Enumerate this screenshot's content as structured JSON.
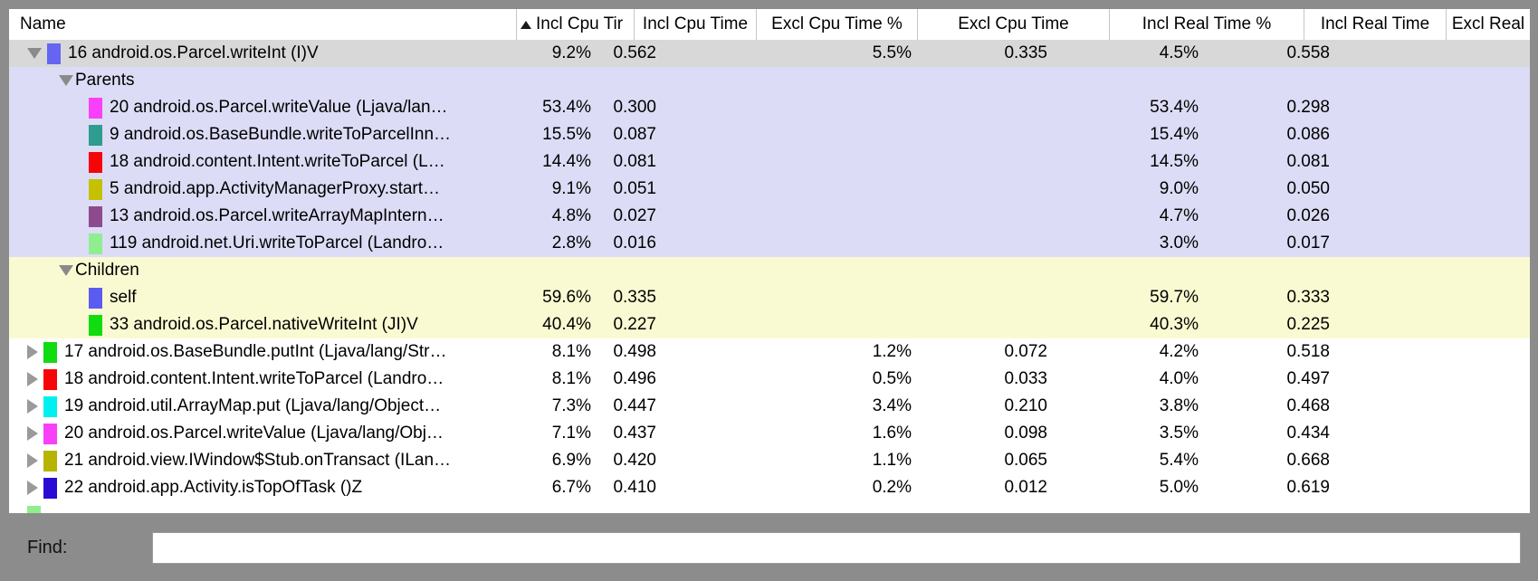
{
  "find": {
    "label": "Find:",
    "value": "",
    "placeholder": ""
  },
  "colors": {
    "frame": "#8c8c8c",
    "selected_row": "#d8d8d8",
    "parents_section": "#dcdcf6",
    "children_section": "#fafad2"
  },
  "table": {
    "columns": [
      {
        "label": "Name",
        "sorted": false
      },
      {
        "label": "Incl Cpu Tir",
        "sorted": true
      },
      {
        "label": "Incl Cpu Time",
        "sorted": false
      },
      {
        "label": "Excl Cpu Time %",
        "sorted": false
      },
      {
        "label": "Excl Cpu Time",
        "sorted": false
      },
      {
        "label": "Incl Real Time %",
        "sorted": false
      },
      {
        "label": "Incl Real Time",
        "sorted": false
      },
      {
        "label": "Excl Real",
        "sorted": false
      }
    ],
    "rows": [
      {
        "level": 0,
        "expander": "down",
        "chip": "#6565f2",
        "name": "16 android.os.Parcel.writeInt (I)V",
        "bg": "selected",
        "values": [
          "9.2%",
          "0.562",
          "5.5%",
          "0.335",
          "4.5%",
          "0.558",
          ""
        ]
      },
      {
        "level": 1,
        "expander": "down",
        "chip": null,
        "name": "Parents",
        "bg": "parents",
        "values": [
          "",
          "",
          "",
          "",
          "",
          "",
          ""
        ]
      },
      {
        "level": 2,
        "expander": null,
        "chip": "#f840f8",
        "name": "20 android.os.Parcel.writeValue (Ljava/lan…",
        "bg": "parents",
        "values": [
          "53.4%",
          "0.300",
          "",
          "",
          "53.4%",
          "0.298",
          ""
        ]
      },
      {
        "level": 2,
        "expander": null,
        "chip": "#2e9c8e",
        "name": "9 android.os.BaseBundle.writeToParcelInn…",
        "bg": "parents",
        "values": [
          "15.5%",
          "0.087",
          "",
          "",
          "15.4%",
          "0.086",
          ""
        ]
      },
      {
        "level": 2,
        "expander": null,
        "chip": "#f70408",
        "name": "18 android.content.Intent.writeToParcel (L…",
        "bg": "parents",
        "values": [
          "14.4%",
          "0.081",
          "",
          "",
          "14.5%",
          "0.081",
          ""
        ]
      },
      {
        "level": 2,
        "expander": null,
        "chip": "#c4c200",
        "name": "5 android.app.ActivityManagerProxy.start…",
        "bg": "parents",
        "values": [
          "9.1%",
          "0.051",
          "",
          "",
          "9.0%",
          "0.050",
          ""
        ]
      },
      {
        "level": 2,
        "expander": null,
        "chip": "#8d4b8d",
        "name": "13 android.os.Parcel.writeArrayMapIntern…",
        "bg": "parents",
        "values": [
          "4.8%",
          "0.027",
          "",
          "",
          "4.7%",
          "0.026",
          ""
        ]
      },
      {
        "level": 2,
        "expander": null,
        "chip": "#90ee90",
        "name": "119 android.net.Uri.writeToParcel (Landro…",
        "bg": "parents",
        "values": [
          "2.8%",
          "0.016",
          "",
          "",
          "3.0%",
          "0.017",
          ""
        ]
      },
      {
        "level": 1,
        "expander": "down",
        "chip": null,
        "name": "Children",
        "bg": "children",
        "values": [
          "",
          "",
          "",
          "",
          "",
          "",
          ""
        ]
      },
      {
        "level": 2,
        "expander": null,
        "chip": "#5b5bf2",
        "name": "self",
        "bg": "children",
        "values": [
          "59.6%",
          "0.335",
          "",
          "",
          "59.7%",
          "0.333",
          ""
        ]
      },
      {
        "level": 2,
        "expander": null,
        "chip": "#10dc10",
        "name": "33 android.os.Parcel.nativeWriteInt (JI)V",
        "bg": "children",
        "values": [
          "40.4%",
          "0.227",
          "",
          "",
          "40.3%",
          "0.225",
          ""
        ]
      },
      {
        "level": 0,
        "expander": "right",
        "chip": "#10dc10",
        "name": "17 android.os.BaseBundle.putInt (Ljava/lang/Str…",
        "bg": "white",
        "values": [
          "8.1%",
          "0.498",
          "1.2%",
          "0.072",
          "4.2%",
          "0.518",
          ""
        ]
      },
      {
        "level": 0,
        "expander": "right",
        "chip": "#f70408",
        "name": "18 android.content.Intent.writeToParcel (Landro…",
        "bg": "white",
        "values": [
          "8.1%",
          "0.496",
          "0.5%",
          "0.033",
          "4.0%",
          "0.497",
          ""
        ]
      },
      {
        "level": 0,
        "expander": "right",
        "chip": "#00f0f0",
        "name": "19 android.util.ArrayMap.put (Ljava/lang/Object…",
        "bg": "white",
        "values": [
          "7.3%",
          "0.447",
          "3.4%",
          "0.210",
          "3.8%",
          "0.468",
          ""
        ]
      },
      {
        "level": 0,
        "expander": "right",
        "chip": "#f840f8",
        "name": "20 android.os.Parcel.writeValue (Ljava/lang/Obj…",
        "bg": "white",
        "values": [
          "7.1%",
          "0.437",
          "1.6%",
          "0.098",
          "3.5%",
          "0.434",
          ""
        ]
      },
      {
        "level": 0,
        "expander": "right",
        "chip": "#b6b400",
        "name": "21 android.view.IWindow$Stub.onTransact (ILan…",
        "bg": "white",
        "values": [
          "6.9%",
          "0.420",
          "1.1%",
          "0.065",
          "5.4%",
          "0.668",
          ""
        ]
      },
      {
        "level": 0,
        "expander": "right",
        "chip": "#2b0bd4",
        "name": "22 android.app.Activity.isTopOfTask ()Z",
        "bg": "white",
        "values": [
          "6.7%",
          "0.410",
          "0.2%",
          "0.012",
          "5.0%",
          "0.619",
          ""
        ]
      },
      {
        "level": 0,
        "expander": null,
        "chip": "#90ee90",
        "name": "",
        "bg": "white",
        "partial": true,
        "values": [
          "",
          "",
          "",
          "",
          "",
          "",
          ""
        ]
      }
    ]
  }
}
